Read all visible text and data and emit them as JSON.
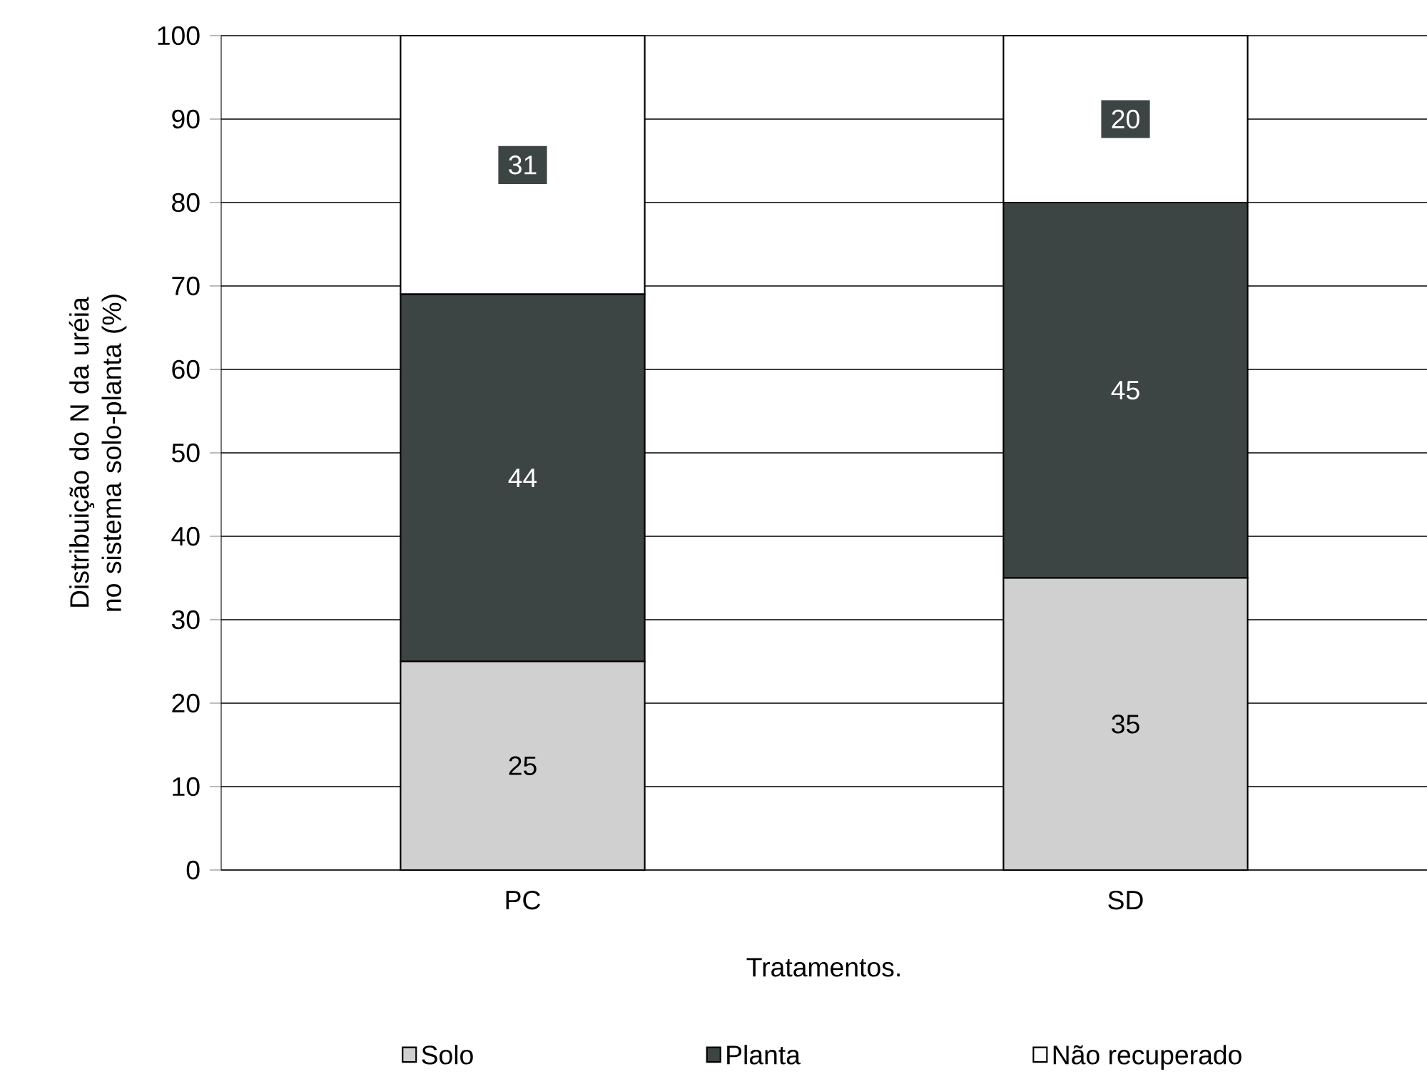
{
  "chart_data": {
    "type": "bar",
    "stacked": true,
    "xlabel": "Tratamentos.",
    "ylabel": "Distribuição do N da uréia no sistema solo-planta (%)",
    "categories": [
      "PC",
      "SD"
    ],
    "series": [
      {
        "name": "Solo",
        "color": "#d0d0d0",
        "values": [
          25,
          35
        ]
      },
      {
        "name": "Planta",
        "color": "#3d4544",
        "values": [
          44,
          45
        ]
      },
      {
        "name": "Não recuperado",
        "color": "#ffffff",
        "values": [
          31,
          20
        ]
      }
    ],
    "ylim": [
      0,
      100
    ],
    "yticks": [
      0,
      10,
      20,
      30,
      40,
      50,
      60,
      70,
      80,
      90,
      100
    ],
    "grid": "y",
    "legend": "bottom",
    "data_labels": true
  }
}
